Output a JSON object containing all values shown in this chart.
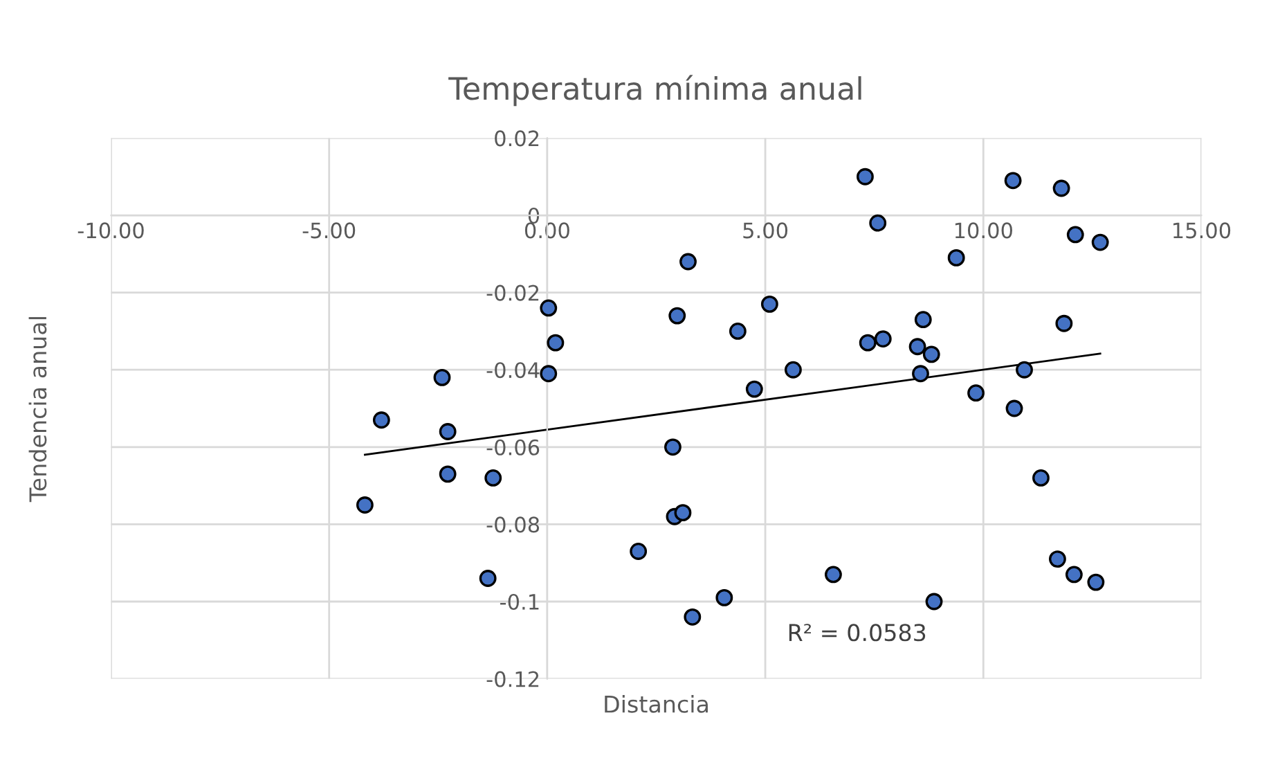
{
  "chart_data": {
    "type": "scatter",
    "title": "Temperatura mínima anual",
    "xlabel": "Distancia",
    "ylabel": "Tendencia anual",
    "xlim": [
      -10,
      15
    ],
    "ylim": [
      -0.12,
      0.02
    ],
    "xticks": [
      {
        "value": -10,
        "label": "-10.00"
      },
      {
        "value": -5,
        "label": "-5.00"
      },
      {
        "value": 0,
        "label": "0.00"
      },
      {
        "value": 5,
        "label": "5.00"
      },
      {
        "value": 10,
        "label": "10.00"
      },
      {
        "value": 15,
        "label": "15.00"
      }
    ],
    "yticks": [
      0.02,
      0,
      -0.02,
      -0.04,
      -0.06,
      -0.08,
      -0.1,
      -0.12
    ],
    "grid": true,
    "legend": false,
    "annotations": [
      "R² = 0.0583"
    ],
    "series": [
      {
        "marker": "circle",
        "color": "#4472c4",
        "x": [
          -4.18,
          -3.8,
          -2.41,
          -2.28,
          -2.28,
          -1.24,
          -1.36,
          0.03,
          0.19,
          0.03,
          3.23,
          2.98,
          4.37,
          5.1,
          4.75,
          5.64,
          2.88,
          2.92,
          3.11,
          2.09,
          3.33,
          4.06,
          6.56,
          7.29,
          7.58,
          7.35,
          7.7,
          8.62,
          8.49,
          8.81,
          8.56,
          9.38,
          9.83,
          8.87,
          10.68,
          11.79,
          12.11,
          12.68,
          11.85,
          10.94,
          10.71,
          11.32,
          11.7,
          12.08,
          12.58
        ],
        "values": [
          -0.075,
          -0.053,
          -0.042,
          -0.056,
          -0.067,
          -0.068,
          -0.094,
          -0.024,
          -0.033,
          -0.041,
          -0.012,
          -0.026,
          -0.03,
          -0.023,
          -0.045,
          -0.04,
          -0.06,
          -0.078,
          -0.077,
          -0.087,
          -0.104,
          -0.099,
          -0.093,
          0.01,
          -0.002,
          -0.033,
          -0.032,
          -0.027,
          -0.034,
          -0.036,
          -0.041,
          -0.011,
          -0.046,
          -0.1,
          0.009,
          0.007,
          -0.005,
          -0.007,
          -0.028,
          -0.04,
          -0.05,
          -0.068,
          -0.089,
          -0.093,
          -0.095
        ]
      },
      {
        "type": "line",
        "marker": "none",
        "color": "#000000",
        "x": [
          -4.18,
          12.68
        ],
        "values": [
          -0.062,
          -0.0358
        ]
      }
    ]
  }
}
